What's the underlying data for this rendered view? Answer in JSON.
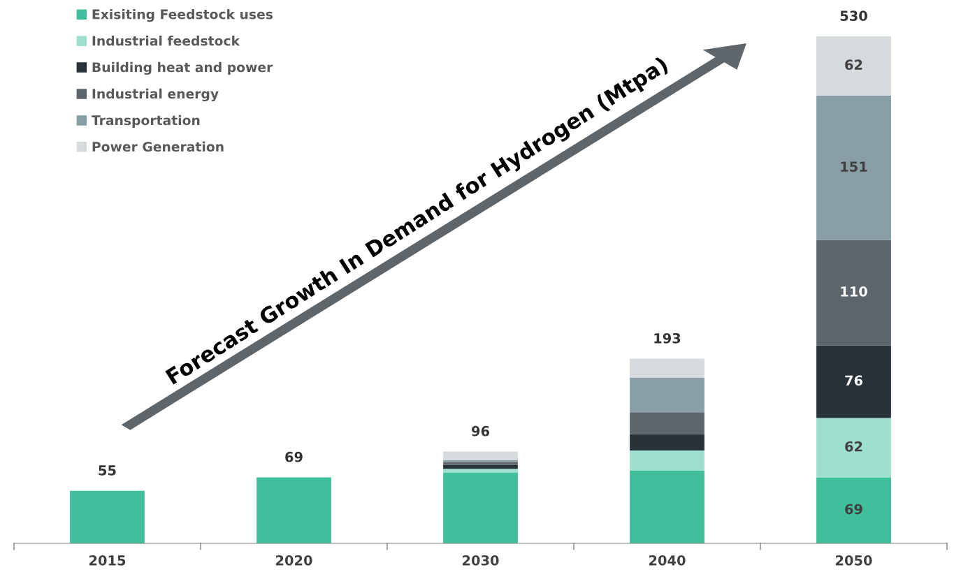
{
  "chart_data": {
    "type": "bar",
    "stacked": true,
    "categories": [
      "2015",
      "2020",
      "2030",
      "2040",
      "2050"
    ],
    "series": [
      {
        "name": "Exisiting Feedstock uses",
        "color": "#3fbf9b",
        "values": [
          55,
          69,
          74,
          76,
          69
        ],
        "value_labels": [
          null,
          null,
          null,
          null,
          "69"
        ]
      },
      {
        "name": "Industrial feedstock",
        "color": "#9fdfcf",
        "values": [
          0,
          0,
          4,
          21,
          62
        ],
        "value_labels": [
          null,
          null,
          null,
          null,
          "62"
        ]
      },
      {
        "name": "Building heat and power",
        "color": "#27323a",
        "values": [
          0,
          0,
          4,
          17,
          76
        ],
        "value_labels": [
          null,
          null,
          null,
          null,
          "76"
        ]
      },
      {
        "name": "Industrial energy",
        "color": "#5c656b",
        "values": [
          0,
          0,
          3,
          23,
          110
        ],
        "value_labels": [
          null,
          null,
          null,
          null,
          "110"
        ]
      },
      {
        "name": "Transportation",
        "color": "#889fa8",
        "values": [
          0,
          0,
          2,
          36,
          151
        ],
        "value_labels": [
          null,
          null,
          null,
          null,
          "151"
        ]
      },
      {
        "name": "Power Generation",
        "color": "#d5dadd",
        "values": [
          0,
          0,
          9,
          20,
          62
        ],
        "value_labels": [
          null,
          null,
          null,
          null,
          "62"
        ]
      }
    ],
    "totals": [
      "55",
      "69",
      "96",
      "193",
      "530"
    ],
    "legend": "top left",
    "grid": false,
    "annotations": [
      "Forecast Growth In Demand for Hydrogen (Mtpa)"
    ]
  }
}
